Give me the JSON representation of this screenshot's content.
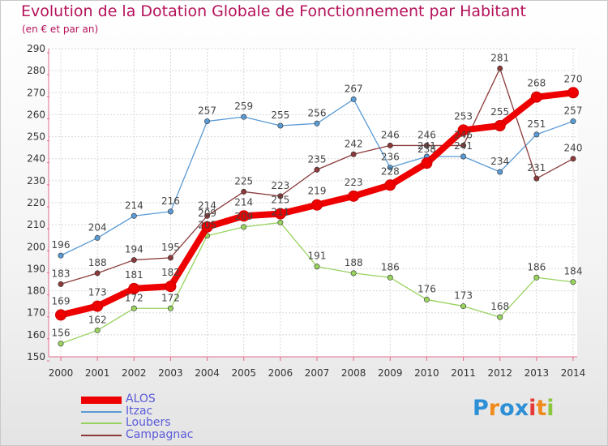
{
  "title": "Evolution de la Dotation Globale de Fonctionnement par Habitant",
  "subtitle": "(en € et par an)",
  "brand": {
    "letters": [
      "P",
      "r",
      "o",
      "x",
      "i",
      "t",
      "i"
    ],
    "colors": [
      "#2d8fd6",
      "#f08a1c",
      "#2d8fd6",
      "#2d8fd6",
      "#e53935",
      "#f08a1c",
      "#8cc63f"
    ]
  },
  "chart_data": {
    "type": "line",
    "x": [
      2000,
      2001,
      2002,
      2003,
      2004,
      2005,
      2006,
      2007,
      2008,
      2009,
      2010,
      2011,
      2012,
      2013,
      2014
    ],
    "ylim": [
      150,
      290
    ],
    "yticks": [
      150,
      160,
      170,
      180,
      190,
      200,
      210,
      220,
      230,
      240,
      250,
      260,
      270,
      280,
      290
    ],
    "grid": true,
    "legend_position": "bottom-left",
    "series": [
      {
        "name": "Itzac",
        "color": "#5a9bd5",
        "values": [
          196,
          204,
          214,
          216,
          257,
          259,
          255,
          256,
          267,
          236,
          241,
          241,
          234,
          251,
          257
        ],
        "labels": [
          "196",
          "204",
          "214",
          "216",
          "257",
          "259",
          "255",
          "256",
          "267",
          "236",
          "241",
          "241",
          "234",
          "251",
          "257"
        ]
      },
      {
        "name": "Loubers",
        "color": "#99d35f",
        "values": [
          156,
          162,
          172,
          172,
          205,
          209,
          211,
          191,
          188,
          186,
          176,
          173,
          168,
          186,
          184
        ],
        "labels": [
          "156",
          "162",
          "172",
          "172",
          "205",
          "209",
          "211",
          "191",
          "188",
          "186",
          "176",
          "173",
          "168",
          "186",
          "184"
        ]
      },
      {
        "name": "Campagnac",
        "color": "#8b3a3a",
        "values": [
          183,
          188,
          194,
          195,
          214,
          225,
          223,
          235,
          242,
          246,
          246,
          246,
          281,
          231,
          240
        ],
        "labels": [
          "183",
          "188",
          "194",
          "195",
          "214",
          "225",
          "223",
          "235",
          "242",
          "246",
          "246",
          "246",
          "281",
          "231",
          "240"
        ]
      },
      {
        "name": "ALOS",
        "color": "#ee0000",
        "values": [
          169,
          173,
          181,
          182,
          209,
          214,
          215,
          219,
          223,
          228,
          238,
          253,
          255,
          268,
          270
        ],
        "labels": [
          "169",
          "173",
          "181",
          "182",
          "209",
          "214",
          "215",
          "219",
          "223",
          "228",
          "238",
          "253",
          "255",
          "268",
          "270"
        ]
      }
    ],
    "legend": [
      "ALOS",
      "Itzac",
      "Loubers",
      "Campagnac"
    ]
  }
}
